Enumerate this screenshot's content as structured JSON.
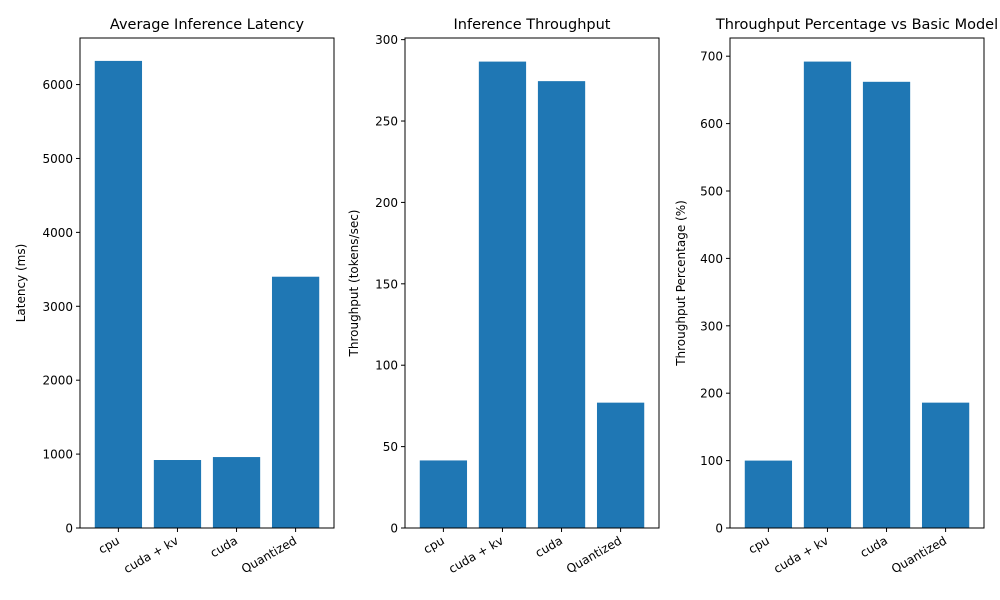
{
  "chart_data": [
    {
      "type": "bar",
      "title": "Average Inference Latency",
      "xlabel": "",
      "ylabel": "Latency (ms)",
      "categories": [
        "cpu",
        "cuda + kv",
        "cuda",
        "Quantized"
      ],
      "values": [
        6320,
        920,
        960,
        3400
      ],
      "ylim": [
        0,
        6630
      ],
      "yticks": [
        0,
        1000,
        2000,
        3000,
        4000,
        5000,
        6000
      ],
      "ytick_labels": [
        "0",
        "1000",
        "2000",
        "3000",
        "4000",
        "5000",
        "6000"
      ],
      "color": "#1f77b4",
      "grid": false
    },
    {
      "type": "bar",
      "title": "Inference Throughput",
      "xlabel": "",
      "ylabel": "Throughput (tokens/sec)",
      "categories": [
        "cpu",
        "cuda + kv",
        "cuda",
        "Quantized"
      ],
      "values": [
        41.5,
        286.5,
        274.5,
        77
      ],
      "ylim": [
        0,
        301
      ],
      "yticks": [
        0,
        50,
        100,
        150,
        200,
        250,
        300
      ],
      "ytick_labels": [
        "0",
        "50",
        "100",
        "150",
        "200",
        "250",
        "300"
      ],
      "color": "#1f77b4",
      "grid": false
    },
    {
      "type": "bar",
      "title": "Throughput Percentage vs Basic Model",
      "xlabel": "",
      "ylabel": "Throughput Percentage (%)",
      "categories": [
        "cpu",
        "cuda + kv",
        "cuda",
        "Quantized"
      ],
      "values": [
        100,
        692,
        662,
        186
      ],
      "ylim": [
        0,
        727
      ],
      "yticks": [
        0,
        100,
        200,
        300,
        400,
        500,
        600,
        700
      ],
      "ytick_labels": [
        "0",
        "100",
        "200",
        "300",
        "400",
        "500",
        "600",
        "700"
      ],
      "color": "#1f77b4",
      "grid": false
    }
  ]
}
